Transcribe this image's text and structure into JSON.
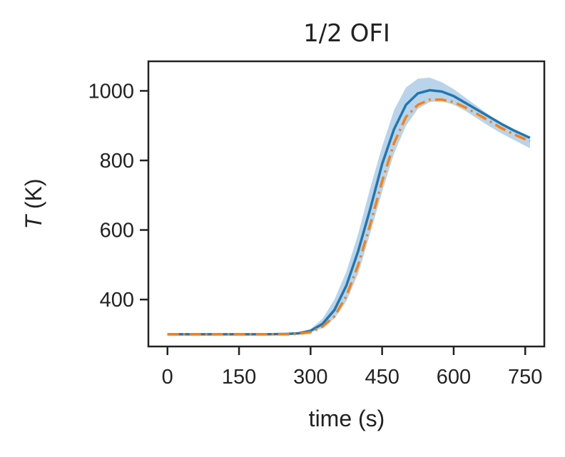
{
  "chart_data": {
    "type": "line",
    "title": "1/2 OFI",
    "xlabel": "time (s)",
    "ylabel_symbol": "T",
    "ylabel_unit": " (K)",
    "xlim": [
      -40,
      790
    ],
    "ylim": [
      265,
      1085
    ],
    "x_ticks": [
      0,
      150,
      300,
      450,
      600,
      750
    ],
    "y_ticks": [
      400,
      600,
      800,
      1000
    ],
    "grid": false,
    "legend": "none",
    "band": {
      "color": "#b9d4ea",
      "x": [
        0,
        100,
        200,
        250,
        275,
        300,
        325,
        350,
        375,
        400,
        425,
        450,
        475,
        500,
        525,
        550,
        575,
        600,
        625,
        650,
        675,
        700,
        725,
        760
      ],
      "upper": [
        300,
        300,
        300,
        301,
        304,
        315,
        345,
        400,
        480,
        590,
        720,
        840,
        945,
        1010,
        1035,
        1038,
        1025,
        1005,
        980,
        955,
        930,
        905,
        885,
        862
      ],
      "lower": [
        300,
        300,
        300,
        300,
        302,
        305,
        318,
        345,
        395,
        475,
        590,
        710,
        820,
        900,
        948,
        968,
        970,
        960,
        942,
        920,
        898,
        878,
        860,
        835
      ]
    },
    "series": [
      {
        "color": "#1f77b4",
        "style": "solid",
        "x": [
          0,
          100,
          200,
          250,
          275,
          300,
          325,
          350,
          375,
          400,
          425,
          450,
          475,
          500,
          525,
          550,
          575,
          600,
          625,
          650,
          675,
          700,
          725,
          760
        ],
        "y": [
          300,
          300,
          300,
          301,
          303,
          310,
          330,
          370,
          440,
          540,
          660,
          790,
          890,
          960,
          993,
          1002,
          998,
          985,
          965,
          945,
          925,
          905,
          887,
          865
        ]
      },
      {
        "color": "#ff7f0e",
        "style": "dashdot",
        "x": [
          0,
          100,
          200,
          250,
          275,
          300,
          325,
          350,
          375,
          400,
          425,
          450,
          475,
          500,
          525,
          550,
          575,
          600,
          625,
          650,
          675,
          700,
          725,
          760
        ],
        "y": [
          300,
          300,
          300,
          300,
          302,
          306,
          322,
          352,
          410,
          500,
          615,
          740,
          850,
          925,
          960,
          975,
          975,
          968,
          952,
          933,
          913,
          893,
          876,
          855
        ]
      }
    ]
  }
}
